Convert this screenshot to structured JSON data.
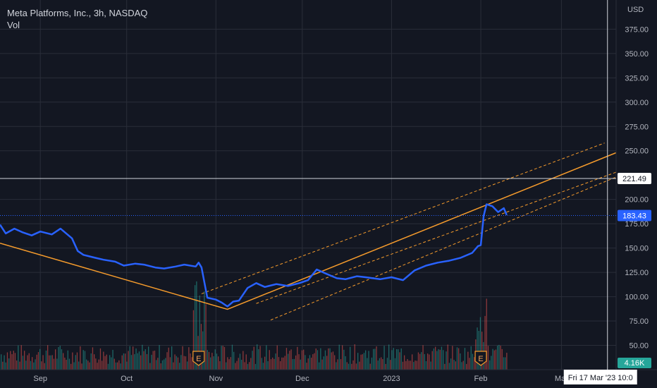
{
  "header": {
    "symbol_line": "Meta Platforms, Inc., 3h, NASDAQ",
    "volume_label": "Vol"
  },
  "colors": {
    "background": "#131722",
    "grid": "#2a2e39",
    "price_line": "#2962ff",
    "trend_line": "#f59b2c",
    "volume_up": "#26a69a",
    "volume_down": "#ef5350",
    "crosshair": "#d1d4dc",
    "text": "#b2b5be"
  },
  "chart_data": {
    "type": "line",
    "title": "Meta Platforms, Inc., 3h, NASDAQ",
    "currency": "USD",
    "ylim": [
      25,
      405
    ],
    "y_ticks": [
      50,
      75,
      100,
      125,
      150,
      175,
      200,
      250,
      275,
      300,
      325,
      350,
      375
    ],
    "x_ticks": [
      {
        "label": "Sep",
        "date": "2022-09-01"
      },
      {
        "label": "Oct",
        "date": "2022-10-01"
      },
      {
        "label": "Nov",
        "date": "2022-11-01"
      },
      {
        "label": "Dec",
        "date": "2022-12-01"
      },
      {
        "label": "2023",
        "date": "2023-01-01"
      },
      {
        "label": "Feb",
        "date": "2023-02-01"
      },
      {
        "label": "Mar",
        "date": "2023-03-01"
      }
    ],
    "xlim": [
      "2022-08-18",
      "2023-03-20"
    ],
    "grid": true,
    "series": [
      {
        "values_note": "",
        "x": [
          "2022-08-18",
          "2022-08-20",
          "2022-08-23",
          "2022-08-26",
          "2022-08-29",
          "2022-09-01",
          "2022-09-05",
          "2022-09-08",
          "2022-09-12",
          "2022-09-14",
          "2022-09-16",
          "2022-09-20",
          "2022-09-23",
          "2022-09-27",
          "2022-09-30",
          "2022-10-04",
          "2022-10-07",
          "2022-10-11",
          "2022-10-14",
          "2022-10-18",
          "2022-10-21",
          "2022-10-25",
          "2022-10-26",
          "2022-10-27",
          "2022-10-29",
          "2022-11-01",
          "2022-11-03",
          "2022-11-05",
          "2022-11-07",
          "2022-11-09",
          "2022-11-12",
          "2022-11-15",
          "2022-11-18",
          "2022-11-22",
          "2022-11-26",
          "2022-11-30",
          "2022-12-03",
          "2022-12-06",
          "2022-12-09",
          "2022-12-13",
          "2022-12-16",
          "2022-12-20",
          "2022-12-23",
          "2022-12-28",
          "2023-01-01",
          "2023-01-05",
          "2023-01-09",
          "2023-01-13",
          "2023-01-17",
          "2023-01-21",
          "2023-01-25",
          "2023-01-29",
          "2023-01-31",
          "2023-02-01",
          "2023-02-02",
          "2023-02-03",
          "2023-02-05",
          "2023-02-07",
          "2023-02-09",
          "2023-02-10"
        ],
        "y": [
          174,
          165,
          170,
          166,
          163,
          167,
          164,
          170,
          160,
          147,
          143,
          140,
          138,
          136,
          132,
          134,
          133,
          130,
          129,
          131,
          133,
          131,
          135,
          130,
          99,
          97,
          94,
          90,
          95,
          96,
          109,
          114,
          110,
          113,
          111,
          114,
          117,
          128,
          124,
          119,
          118,
          121,
          120,
          118,
          120,
          117,
          127,
          132,
          135,
          137,
          140,
          145,
          152,
          153,
          183,
          195,
          193,
          187,
          191,
          184
        ],
        "name": ""
      }
    ],
    "volume": {
      "label": "Vol",
      "last_value": "4.16K",
      "earnings_markers": [
        {
          "label": "E",
          "date": "2022-10-26"
        },
        {
          "label": "E",
          "date": "2023-02-01"
        }
      ]
    },
    "trend_lines": [
      {
        "style": "solid",
        "points": [
          [
            "2022-08-18",
            155
          ],
          [
            "2022-11-05",
            87
          ],
          [
            "2023-03-20",
            248
          ]
        ]
      },
      {
        "style": "dashed",
        "points": [
          [
            "2022-10-27",
            103
          ],
          [
            "2023-03-16",
            258
          ]
        ]
      },
      {
        "style": "dashed",
        "points": [
          [
            "2022-11-15",
            93
          ],
          [
            "2023-03-20",
            228
          ]
        ]
      },
      {
        "style": "dashed",
        "points": [
          [
            "2022-11-20",
            76
          ],
          [
            "2023-03-20",
            223
          ]
        ]
      }
    ],
    "price_labels": [
      {
        "value": 221.49,
        "text": "221.49",
        "kind": "crosshair"
      },
      {
        "value": 183.43,
        "text": "183.43",
        "kind": "last"
      }
    ],
    "crosshair": {
      "date_label": "Fri 17 Mar '23  10:0",
      "date": "2023-03-17"
    }
  }
}
